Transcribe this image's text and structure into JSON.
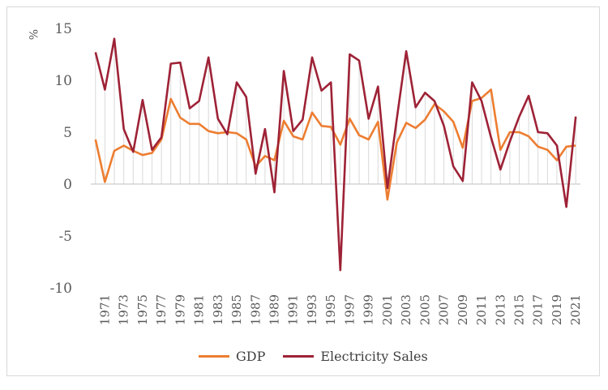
{
  "chart_data": {
    "type": "line",
    "ylabel": "%",
    "ylim": [
      -10,
      15
    ],
    "yticks": [
      -10,
      -5,
      0,
      5,
      10,
      15
    ],
    "x": [
      1970,
      1971,
      1972,
      1973,
      1974,
      1975,
      1976,
      1977,
      1978,
      1979,
      1980,
      1981,
      1982,
      1983,
      1984,
      1985,
      1986,
      1987,
      1988,
      1989,
      1990,
      1991,
      1992,
      1993,
      1994,
      1995,
      1996,
      1997,
      1998,
      1999,
      2000,
      2001,
      2002,
      2003,
      2004,
      2005,
      2006,
      2007,
      2008,
      2009,
      2010,
      2011,
      2012,
      2013,
      2014,
      2015,
      2016,
      2017,
      2018,
      2019,
      2020,
      2021
    ],
    "xtick_labels": [
      "1971",
      "1973",
      "1975",
      "1977",
      "1979",
      "1981",
      "1983",
      "1985",
      "1987",
      "1989",
      "1991",
      "1993",
      "1995",
      "1997",
      "1999",
      "2001",
      "2003",
      "2005",
      "2007",
      "2009",
      "2011",
      "2013",
      "2015",
      "2017",
      "2019",
      "2021"
    ],
    "grid": "vertical drop lines",
    "legend_position": "bottom",
    "series": [
      {
        "name": "GDP",
        "color": "#ED7D31",
        "values": [
          4.3,
          0.2,
          3.2,
          3.7,
          3.2,
          2.8,
          3.0,
          4.3,
          8.2,
          6.4,
          5.8,
          5.8,
          5.1,
          4.9,
          5.0,
          4.9,
          4.3,
          1.7,
          2.7,
          2.3,
          6.1,
          4.6,
          4.3,
          6.9,
          5.6,
          5.5,
          3.8,
          6.3,
          4.7,
          4.3,
          6.0,
          -1.5,
          4.0,
          5.9,
          5.4,
          6.2,
          7.7,
          7.0,
          6.0,
          3.5,
          8.0,
          8.3,
          9.1,
          3.3,
          5.0,
          5.0,
          4.6,
          3.6,
          3.3,
          2.3,
          3.6,
          3.7
        ]
      },
      {
        "name": "Electricity Sales",
        "color": "#9E2236",
        "values": [
          12.7,
          9.1,
          14.0,
          5.3,
          3.1,
          8.1,
          3.3,
          4.5,
          11.6,
          11.7,
          7.3,
          8.0,
          12.2,
          6.3,
          4.8,
          9.8,
          8.4,
          1.0,
          5.3,
          -0.8,
          10.9,
          5.1,
          6.2,
          12.2,
          9.0,
          9.8,
          -8.3,
          12.5,
          11.9,
          6.3,
          9.4,
          -0.4,
          6.3,
          12.8,
          7.4,
          8.8,
          8.0,
          5.6,
          1.7,
          0.3,
          9.8,
          8.0,
          4.5,
          1.4,
          4.1,
          6.5,
          8.5,
          5.0,
          4.9,
          3.7,
          -2.2,
          6.5
        ]
      }
    ]
  }
}
